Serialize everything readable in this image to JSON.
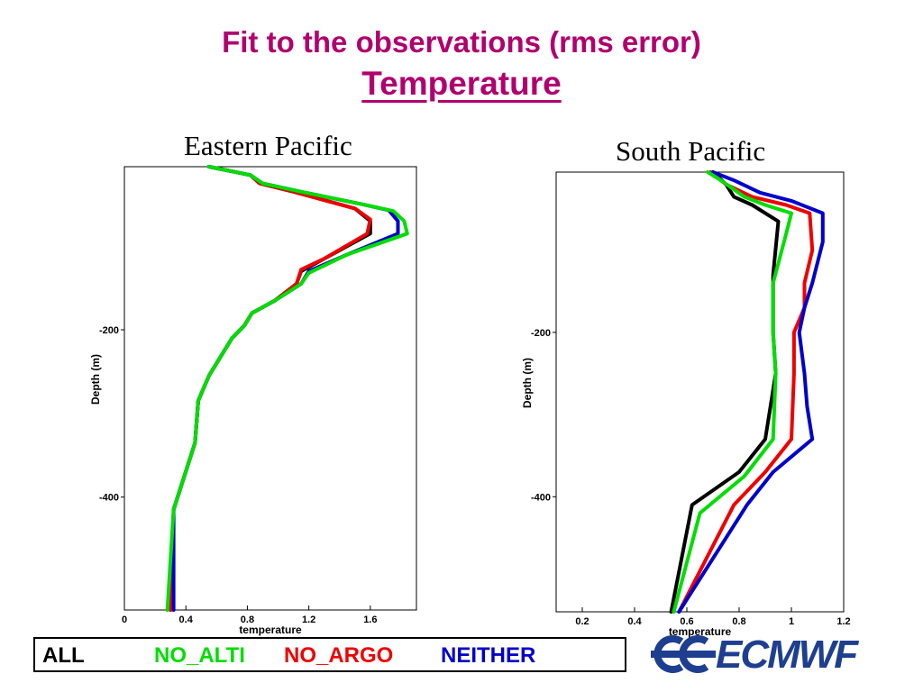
{
  "slide": {
    "title_line1": "Fit to the observations  (rms error)",
    "title_line2": "Temperature",
    "title_color": "#b0006e"
  },
  "legend": {
    "all": {
      "label": "ALL",
      "color": "#000000"
    },
    "no_alti": {
      "label": "NO_ALTI",
      "color": "#00dd00"
    },
    "no_argo": {
      "label": "NO_ARGO",
      "color": "#ee0000"
    },
    "neither": {
      "label": "NEITHER",
      "color": "#0000cc"
    }
  },
  "logo": {
    "text": "ECMWF",
    "color": "#1e3f8f"
  },
  "chart_data": [
    {
      "type": "line",
      "title": "Eastern Pacific",
      "xlabel": "temperature",
      "ylabel": "Depth (m)",
      "xlim": [
        0,
        1.9
      ],
      "ylim": [
        -535,
        -5
      ],
      "x_ticks": [
        0,
        0.4,
        0.8,
        1.2,
        1.6
      ],
      "x_tick_labels": [
        "0",
        "0.4",
        "0.8",
        "1.2",
        "1.6"
      ],
      "y_ticks": [
        -200,
        -400
      ],
      "y_tick_labels": [
        "-200",
        "-400"
      ],
      "grid": false,
      "series": [
        {
          "name": "ALL",
          "color": "#000000",
          "points": [
            [
              0.55,
              -5
            ],
            [
              0.82,
              -15
            ],
            [
              0.88,
              -25
            ],
            [
              1.1,
              -35
            ],
            [
              1.5,
              -55
            ],
            [
              1.6,
              -70
            ],
            [
              1.6,
              -85
            ],
            [
              1.3,
              -115
            ],
            [
              1.15,
              -130
            ],
            [
              1.12,
              -145
            ],
            [
              0.98,
              -165
            ],
            [
              0.83,
              -180
            ],
            [
              0.78,
              -195
            ],
            [
              0.7,
              -210
            ],
            [
              0.55,
              -255
            ],
            [
              0.48,
              -285
            ],
            [
              0.46,
              -335
            ],
            [
              0.32,
              -415
            ],
            [
              0.3,
              -535
            ]
          ]
        },
        {
          "name": "NO_ALTI",
          "color": "#00dd00",
          "points": [
            [
              0.55,
              -5
            ],
            [
              0.82,
              -15
            ],
            [
              0.9,
              -25
            ],
            [
              1.15,
              -35
            ],
            [
              1.55,
              -50
            ],
            [
              1.75,
              -58
            ],
            [
              1.82,
              -70
            ],
            [
              1.84,
              -85
            ],
            [
              1.45,
              -110
            ],
            [
              1.2,
              -132
            ],
            [
              1.15,
              -145
            ],
            [
              0.98,
              -165
            ],
            [
              0.83,
              -180
            ],
            [
              0.78,
              -195
            ],
            [
              0.7,
              -210
            ],
            [
              0.55,
              -255
            ],
            [
              0.48,
              -285
            ],
            [
              0.46,
              -335
            ],
            [
              0.32,
              -415
            ],
            [
              0.28,
              -535
            ]
          ]
        },
        {
          "name": "NO_ARGO",
          "color": "#ee0000",
          "points": [
            [
              0.55,
              -5
            ],
            [
              0.82,
              -15
            ],
            [
              0.88,
              -25
            ],
            [
              1.1,
              -35
            ],
            [
              1.5,
              -55
            ],
            [
              1.6,
              -68
            ],
            [
              1.58,
              -85
            ],
            [
              1.3,
              -115
            ],
            [
              1.15,
              -128
            ],
            [
              1.12,
              -145
            ],
            [
              0.98,
              -165
            ],
            [
              0.83,
              -180
            ],
            [
              0.78,
              -195
            ],
            [
              0.7,
              -210
            ],
            [
              0.55,
              -255
            ],
            [
              0.48,
              -285
            ],
            [
              0.46,
              -335
            ],
            [
              0.32,
              -415
            ],
            [
              0.3,
              -535
            ]
          ]
        },
        {
          "name": "NEITHER",
          "color": "#0000cc",
          "points": [
            [
              0.55,
              -5
            ],
            [
              0.82,
              -15
            ],
            [
              0.9,
              -25
            ],
            [
              1.15,
              -35
            ],
            [
              1.55,
              -50
            ],
            [
              1.72,
              -57
            ],
            [
              1.78,
              -70
            ],
            [
              1.78,
              -85
            ],
            [
              1.45,
              -110
            ],
            [
              1.2,
              -130
            ],
            [
              1.15,
              -145
            ],
            [
              0.98,
              -165
            ],
            [
              0.83,
              -180
            ],
            [
              0.78,
              -195
            ],
            [
              0.7,
              -210
            ],
            [
              0.55,
              -255
            ],
            [
              0.48,
              -285
            ],
            [
              0.46,
              -335
            ],
            [
              0.32,
              -415
            ],
            [
              0.32,
              -535
            ]
          ]
        }
      ]
    },
    {
      "type": "line",
      "title": "South Pacific",
      "xlabel": "temperature",
      "ylabel": "Depth (m)",
      "xlim": [
        0.1,
        1.2
      ],
      "ylim": [
        -540,
        -5
      ],
      "x_ticks": [
        0.2,
        0.4,
        0.6,
        0.8,
        1.0,
        1.2
      ],
      "x_tick_labels": [
        "0.2",
        "0.4",
        "0.6",
        "0.8",
        "1",
        "1.2"
      ],
      "y_ticks": [
        -200,
        -400
      ],
      "y_tick_labels": [
        "-200",
        "-400"
      ],
      "grid": false,
      "series": [
        {
          "name": "ALL",
          "color": "#000000",
          "points": [
            [
              0.7,
              -5
            ],
            [
              0.75,
              -20
            ],
            [
              0.78,
              -35
            ],
            [
              0.85,
              -45
            ],
            [
              0.95,
              -65
            ],
            [
              0.93,
              -130
            ],
            [
              0.93,
              -200
            ],
            [
              0.94,
              -250
            ],
            [
              0.9,
              -330
            ],
            [
              0.8,
              -370
            ],
            [
              0.62,
              -410
            ],
            [
              0.54,
              -540
            ]
          ]
        },
        {
          "name": "NO_ALTI",
          "color": "#00dd00",
          "points": [
            [
              0.68,
              -5
            ],
            [
              0.73,
              -15
            ],
            [
              0.82,
              -35
            ],
            [
              0.9,
              -45
            ],
            [
              1.0,
              -55
            ],
            [
              0.98,
              -80
            ],
            [
              0.93,
              -140
            ],
            [
              0.93,
              -200
            ],
            [
              0.94,
              -250
            ],
            [
              0.93,
              -330
            ],
            [
              0.82,
              -375
            ],
            [
              0.65,
              -420
            ],
            [
              0.55,
              -540
            ]
          ]
        },
        {
          "name": "NO_ARGO",
          "color": "#ee0000",
          "points": [
            [
              0.69,
              -5
            ],
            [
              0.75,
              -20
            ],
            [
              0.85,
              -35
            ],
            [
              0.98,
              -45
            ],
            [
              1.07,
              -55
            ],
            [
              1.08,
              -100
            ],
            [
              1.05,
              -140
            ],
            [
              1.05,
              -170
            ],
            [
              1.01,
              -200
            ],
            [
              1.01,
              -250
            ],
            [
              1.0,
              -330
            ],
            [
              0.9,
              -370
            ],
            [
              0.78,
              -410
            ],
            [
              0.57,
              -540
            ]
          ]
        },
        {
          "name": "NEITHER",
          "color": "#0000cc",
          "points": [
            [
              0.7,
              -5
            ],
            [
              0.78,
              -15
            ],
            [
              0.88,
              -30
            ],
            [
              1.0,
              -40
            ],
            [
              1.12,
              -55
            ],
            [
              1.12,
              -90
            ],
            [
              1.08,
              -140
            ],
            [
              1.05,
              -170
            ],
            [
              1.03,
              -200
            ],
            [
              1.05,
              -250
            ],
            [
              1.06,
              -290
            ],
            [
              1.08,
              -330
            ],
            [
              0.93,
              -370
            ],
            [
              0.83,
              -410
            ],
            [
              0.57,
              -540
            ]
          ]
        }
      ]
    }
  ]
}
